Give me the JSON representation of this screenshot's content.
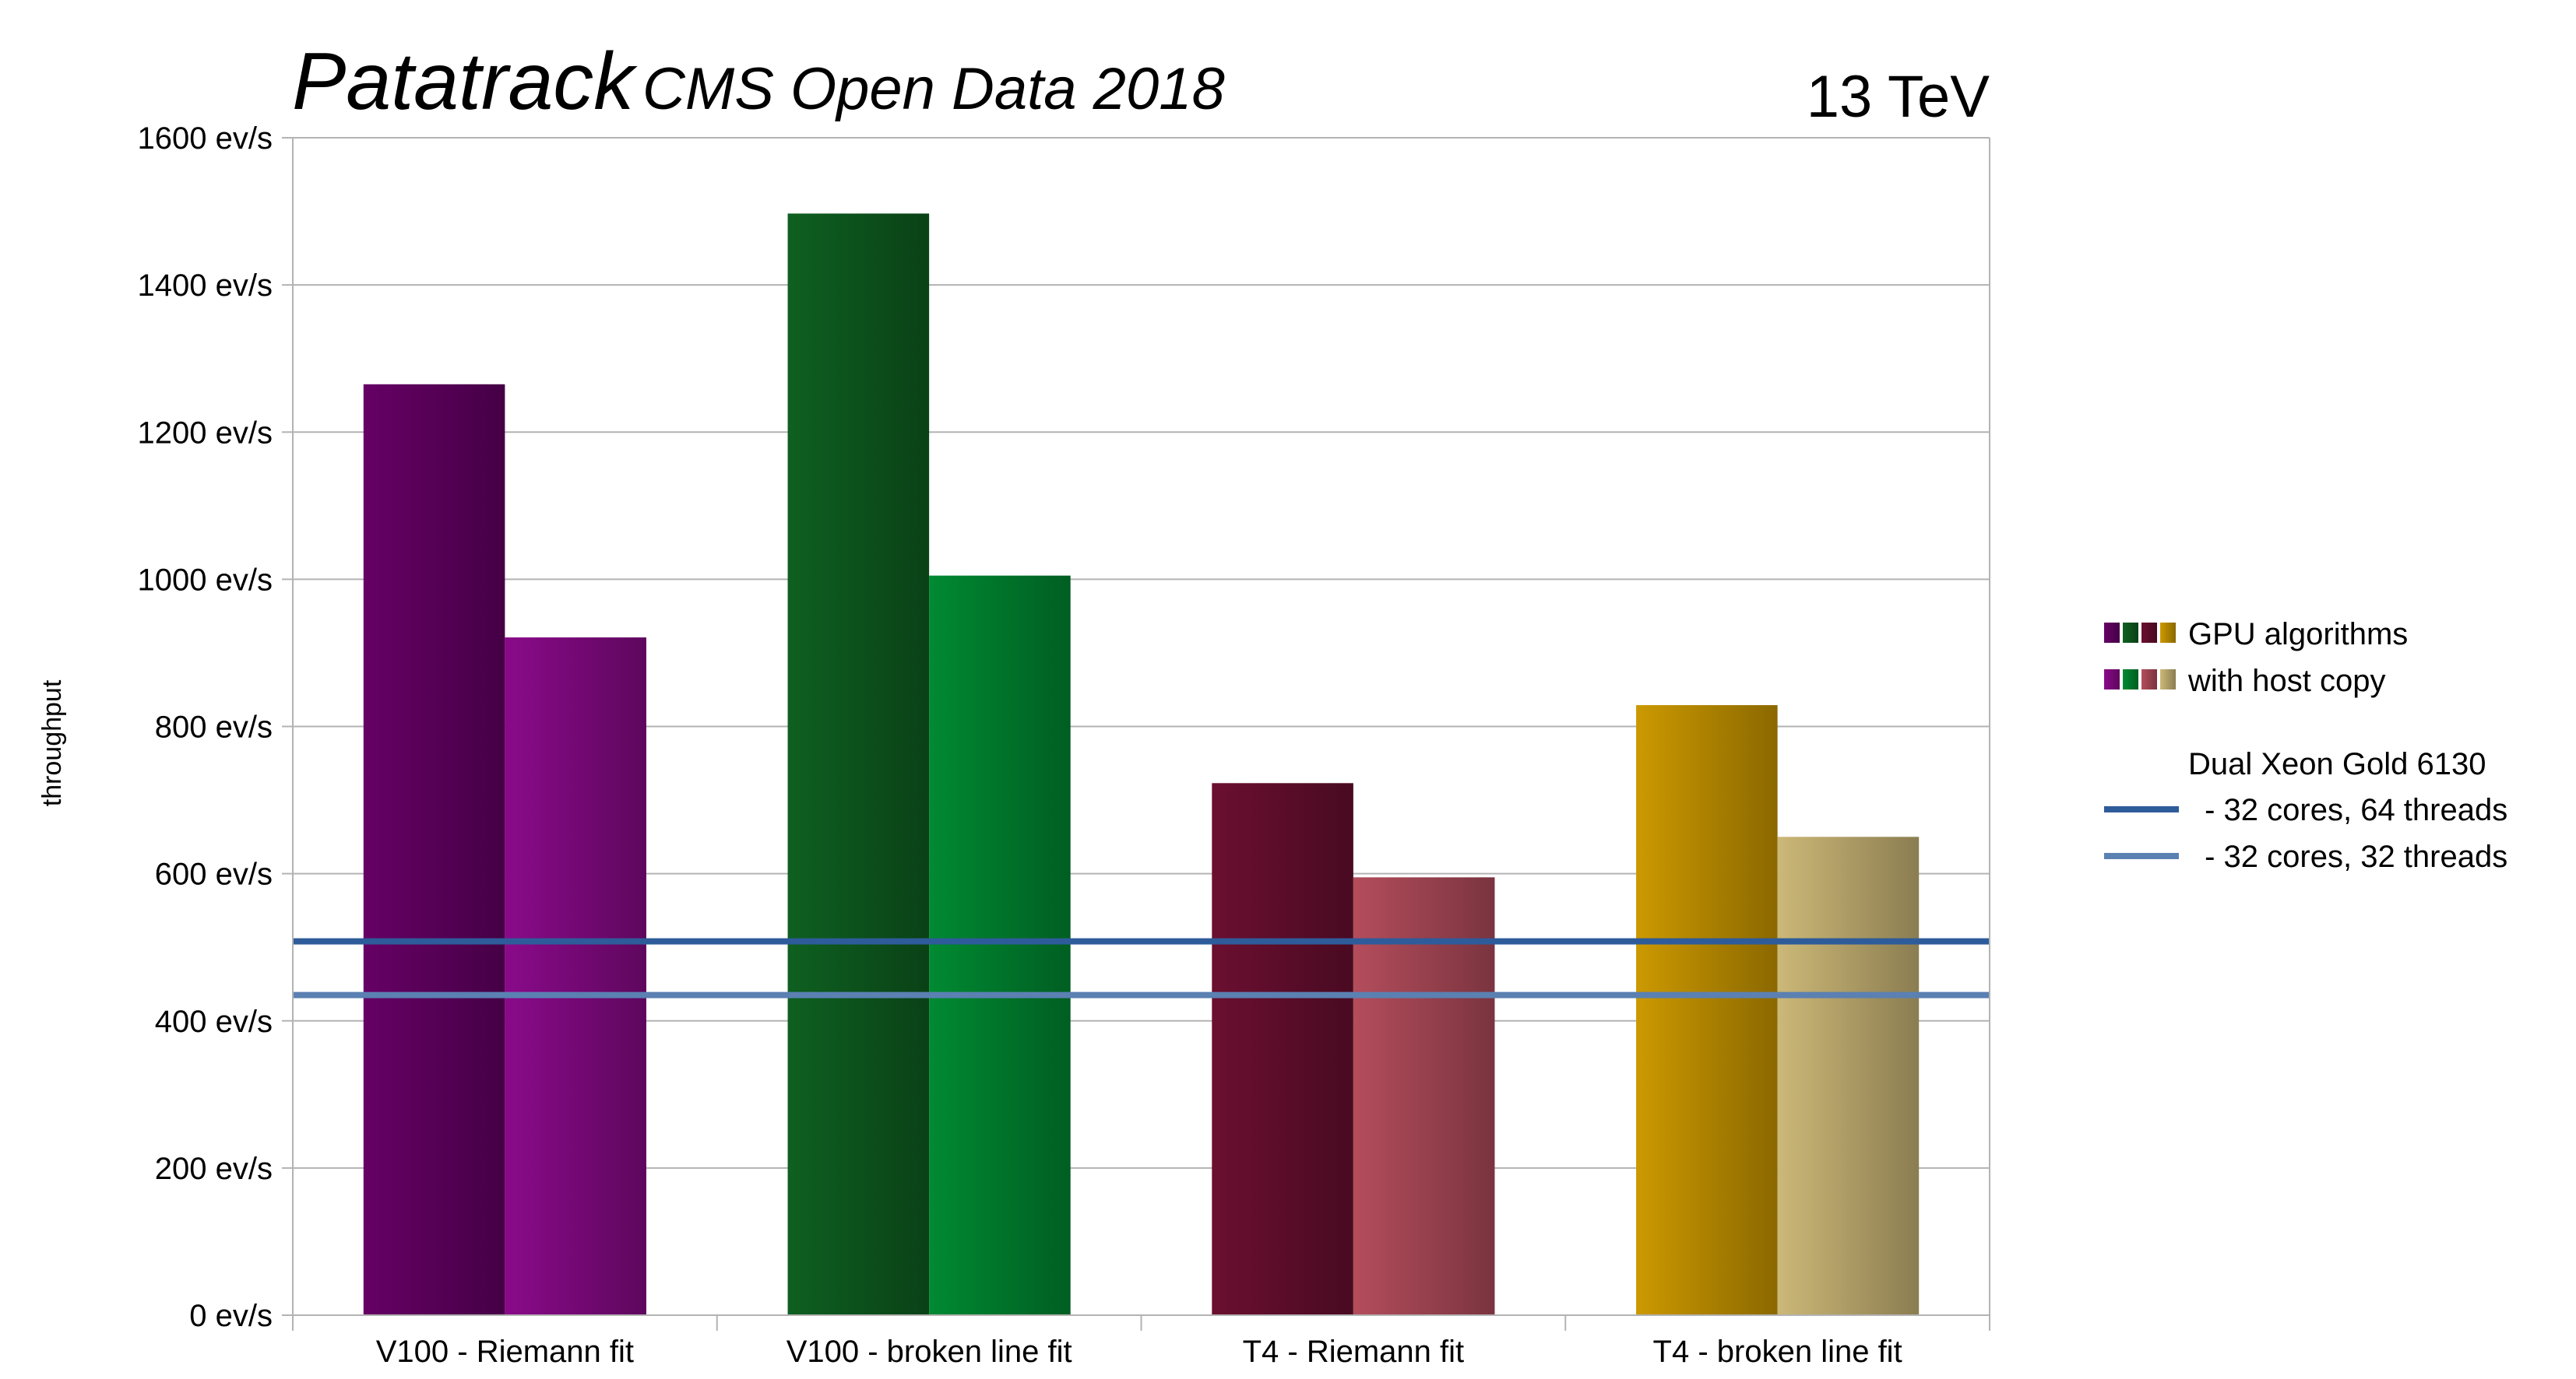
{
  "chart_data": {
    "type": "bar",
    "title": "Patatrack",
    "subtitle": "CMS Open Data 2018",
    "energy_label": "13 TeV",
    "ylabel": "throughput",
    "xlabel": "",
    "ylim": [
      0,
      1600
    ],
    "y_ticks": [
      0,
      200,
      400,
      600,
      800,
      1000,
      1200,
      1400,
      1600
    ],
    "y_tick_suffix": " ev/s",
    "grid": true,
    "legend_position": "right",
    "categories": [
      "V100 - Riemann fit",
      "V100 - broken line fit",
      "T4 - Riemann fit",
      "T4 - broken line fit"
    ],
    "series": [
      {
        "name": "GPU algorithms",
        "values": [
          1265,
          1497,
          723,
          829
        ],
        "colors": [
          "#660066",
          "#0e6021",
          "#6b0f30",
          "#cc9900"
        ]
      },
      {
        "name": "with host copy",
        "values": [
          921,
          1005,
          595,
          650
        ],
        "colors": [
          "#8a0a8a",
          "#008a32",
          "#b44d5c",
          "#ccb877"
        ]
      }
    ],
    "reference_group_label": "Dual Xeon Gold 6130",
    "reference_lines": [
      {
        "name": " - 32 cores, 64 threads",
        "value": 508,
        "color": "#2e5b9a"
      },
      {
        "name": " - 32 cores, 32 threads",
        "value": 435,
        "color": "#5b80b2"
      }
    ]
  }
}
